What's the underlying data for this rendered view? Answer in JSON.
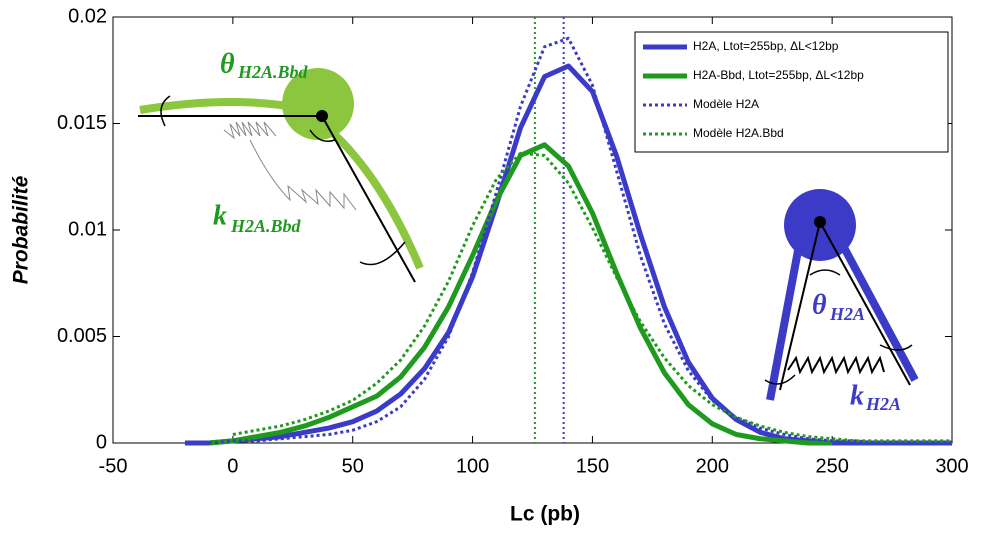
{
  "chart_data": {
    "type": "line",
    "xlabel": "Lc (pb)",
    "ylabel": "Probabilité",
    "x": [
      -20,
      -10,
      0,
      10,
      20,
      30,
      40,
      50,
      60,
      70,
      80,
      90,
      100,
      110,
      120,
      130,
      140,
      150,
      160,
      170,
      180,
      190,
      200,
      210,
      220,
      230,
      240,
      250,
      260,
      270,
      280,
      290,
      300
    ],
    "series": [
      {
        "name": "H2A, Ltot=255bp, ΔL<12bp",
        "color": "#3b3bc8",
        "style": "solid",
        "values": [
          0,
          0,
          0.0001,
          0.0002,
          0.0003,
          0.0005,
          0.0007,
          0.001,
          0.0015,
          0.0023,
          0.0035,
          0.0052,
          0.0078,
          0.0112,
          0.0148,
          0.0172,
          0.0177,
          0.0165,
          0.0135,
          0.0098,
          0.0064,
          0.0038,
          0.0021,
          0.0011,
          0.0005,
          0.0002,
          0.0001,
          0,
          0,
          0,
          0,
          0,
          0
        ]
      },
      {
        "name": "H2A-Bbd, Ltot=255bp, ΔL<12bp",
        "color": "#1f9a1f",
        "style": "solid",
        "values": [
          null,
          0,
          0.0001,
          0.0003,
          0.0005,
          0.0008,
          0.0012,
          0.0017,
          0.0022,
          0.0031,
          0.0045,
          0.0064,
          0.0088,
          0.0114,
          0.0135,
          0.014,
          0.013,
          0.0108,
          0.008,
          0.0054,
          0.0033,
          0.0018,
          0.0009,
          0.0004,
          0.0002,
          0.0001,
          0,
          0,
          null,
          null,
          null,
          null,
          null
        ]
      },
      {
        "name": "Modèle H2A",
        "color": "#3b3bc8",
        "style": "dotted",
        "values": [
          null,
          0,
          0.0001,
          0.0001,
          0.0002,
          0.0003,
          0.0004,
          0.0006,
          0.001,
          0.0017,
          0.003,
          0.005,
          0.008,
          0.0118,
          0.0158,
          0.0186,
          0.019,
          0.0168,
          0.0128,
          0.0088,
          0.0056,
          0.0034,
          0.002,
          0.0012,
          0.0007,
          0.0004,
          0.0002,
          0.0001,
          0.0001,
          0,
          0,
          0,
          0
        ]
      },
      {
        "name": "Modèle H2A.Bbd",
        "color": "#1f9a1f",
        "style": "dotted",
        "values": [
          null,
          null,
          0.0004,
          0.0006,
          0.0008,
          0.0011,
          0.0015,
          0.002,
          0.0028,
          0.0039,
          0.0055,
          0.0076,
          0.0102,
          0.0124,
          0.0136,
          0.0135,
          0.0122,
          0.0101,
          0.0078,
          0.0057,
          0.004,
          0.0027,
          0.0018,
          0.0012,
          0.0008,
          0.0005,
          0.0003,
          0.0002,
          0.0001,
          0.0001,
          0.0001,
          0.0001,
          0.0001
        ]
      }
    ],
    "vlines": [
      {
        "x": 126,
        "color": "#1f9a1f"
      },
      {
        "x": 138,
        "color": "#3b3bc8"
      }
    ],
    "xlim": [
      -50,
      300
    ],
    "xticks": [
      -50,
      0,
      50,
      100,
      150,
      200,
      250,
      300
    ],
    "ylim": [
      0,
      0.02
    ],
    "yticks": [
      0,
      0.005,
      0.01,
      0.015,
      0.02
    ],
    "grid": false,
    "legend": "upper right",
    "annotations": [
      {
        "symbol": "θ",
        "subscript": "H2A.Bbd",
        "color": "#1f9a1f"
      },
      {
        "symbol": "k",
        "subscript": "H2A.Bbd",
        "color": "#1f9a1f"
      },
      {
        "symbol": "θ",
        "subscript": "H2A",
        "color": "#3b3bc8"
      },
      {
        "symbol": "k",
        "subscript": "H2A",
        "color": "#3b3bc8"
      }
    ]
  }
}
